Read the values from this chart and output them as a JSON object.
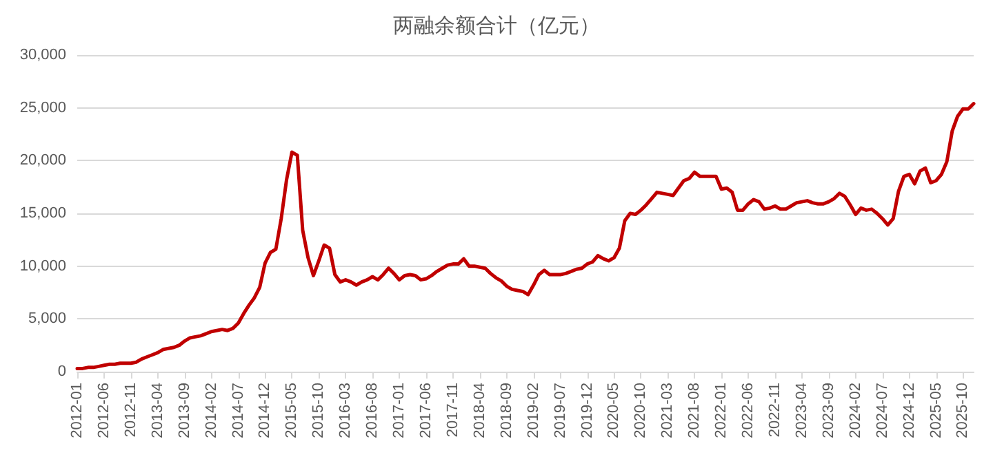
{
  "chart_data": {
    "type": "line",
    "title": "两融余额合计（亿元）",
    "categories": [
      "2012-01",
      null,
      null,
      null,
      null,
      "2012-06",
      null,
      null,
      null,
      null,
      "2012-11",
      null,
      null,
      null,
      null,
      "2013-04",
      null,
      null,
      null,
      null,
      "2013-09",
      null,
      null,
      null,
      null,
      "2014-02",
      null,
      null,
      null,
      null,
      "2014-07",
      null,
      null,
      null,
      null,
      "2014-12",
      null,
      null,
      null,
      null,
      "2015-05",
      null,
      null,
      null,
      null,
      "2015-10",
      null,
      null,
      null,
      null,
      "2016-03",
      null,
      null,
      null,
      null,
      "2016-08",
      null,
      null,
      null,
      null,
      "2017-01",
      null,
      null,
      null,
      null,
      "2017-06",
      null,
      null,
      null,
      null,
      "2017-11",
      null,
      null,
      null,
      null,
      "2018-04",
      null,
      null,
      null,
      null,
      "2018-09",
      null,
      null,
      null,
      null,
      "2019-02",
      null,
      null,
      null,
      null,
      "2019-07",
      null,
      null,
      null,
      null,
      "2019-12",
      null,
      null,
      null,
      null,
      "2020-05",
      null,
      null,
      null,
      null,
      "2020-10",
      null,
      null,
      null,
      null,
      "2021-03",
      null,
      null,
      null,
      null,
      "2021-08",
      null,
      null,
      null,
      null,
      "2022-01",
      null,
      null,
      null,
      null,
      "2022-06",
      null,
      null,
      null,
      null,
      "2022-11",
      null,
      null,
      null,
      null,
      "2023-04",
      null,
      null,
      null,
      null,
      "2023-09",
      null,
      null,
      null,
      null,
      "2024-02",
      null,
      null,
      null,
      null,
      "2024-07",
      null,
      null,
      null,
      null,
      "2024-12",
      null,
      null,
      null,
      null,
      "2025-05",
      null,
      null,
      null,
      null,
      "2025-10",
      null,
      null
    ],
    "series": [
      {
        "color": "#c00000",
        "values": [
          300,
          300,
          400,
          400,
          500,
          600,
          700,
          700,
          800,
          800,
          800,
          900,
          1200,
          1400,
          1600,
          1800,
          2100,
          2200,
          2300,
          2500,
          2900,
          3200,
          3300,
          3400,
          3600,
          3800,
          3900,
          4000,
          3900,
          4100,
          4600,
          5500,
          6300,
          7000,
          8000,
          10300,
          11300,
          11600,
          14500,
          18200,
          20800,
          20500,
          13400,
          10800,
          9100,
          10500,
          12000,
          11700,
          9200,
          8500,
          8700,
          8500,
          8200,
          8500,
          8700,
          9000,
          8700,
          9200,
          9800,
          9300,
          8700,
          9100,
          9200,
          9100,
          8700,
          8800,
          9100,
          9500,
          9800,
          10100,
          10200,
          10200,
          10700,
          10000,
          10000,
          9900,
          9800,
          9300,
          8900,
          8600,
          8100,
          7800,
          7700,
          7600,
          7300,
          8200,
          9200,
          9600,
          9200,
          9200,
          9200,
          9300,
          9500,
          9700,
          9800,
          10200,
          10400,
          11000,
          10700,
          10500,
          10800,
          11700,
          14300,
          15000,
          14900,
          15300,
          15800,
          16400,
          17000,
          16900,
          16800,
          16700,
          17400,
          18100,
          18300,
          18900,
          18500,
          18500,
          18500,
          18500,
          17300,
          17400,
          17000,
          15300,
          15300,
          15900,
          16300,
          16100,
          15400,
          15500,
          15700,
          15400,
          15400,
          15700,
          16000,
          16100,
          16200,
          16000,
          15900,
          15900,
          16100,
          16400,
          16900,
          16600,
          15800,
          14900,
          15500,
          15300,
          15400,
          15000,
          14500,
          13900,
          14500,
          17100,
          18500,
          18700,
          17800,
          19000,
          19300,
          17900,
          18100,
          18700,
          19900,
          22800,
          24200,
          24900,
          24900,
          25400
        ]
      }
    ],
    "ylim": [
      0,
      30000
    ],
    "yticks": [
      0,
      {
        "value": 5000,
        "label": "5,000"
      },
      {
        "value": 10000,
        "label": "10,000"
      },
      {
        "value": 15000,
        "label": "15,000"
      },
      {
        "value": 20000,
        "label": "20,000"
      },
      {
        "value": 25000,
        "label": "25,000"
      },
      {
        "value": 30000,
        "label": "30,000"
      }
    ],
    "grid": "y",
    "marker": "none",
    "line_style": "solid"
  }
}
